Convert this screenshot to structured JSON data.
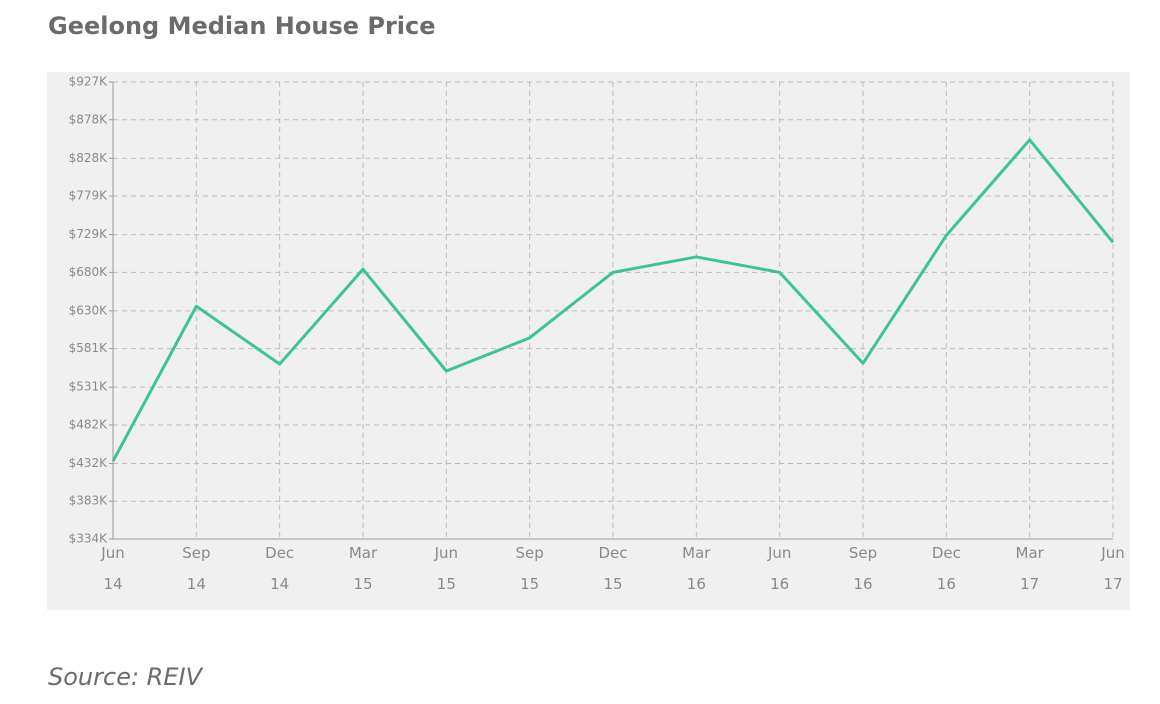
{
  "chart_data": {
    "type": "line",
    "title": "Geelong Median House Price",
    "source": "Source: REIV",
    "categories": [
      "Jun 14",
      "Sep 14",
      "Dec 14",
      "Mar 15",
      "Jun 15",
      "Sep 15",
      "Dec 15",
      "Mar 16",
      "Jun 16",
      "Sep 16",
      "Dec 16",
      "Mar 17",
      "Jun 17"
    ],
    "series": [
      {
        "color": "#3dc495",
        "values": [
          435000,
          636000,
          561000,
          684000,
          552000,
          595000,
          680000,
          700000,
          680000,
          562000,
          728000,
          852000,
          719000
        ]
      }
    ],
    "ylim": [
      334000,
      927000
    ],
    "yticks": [
      {
        "value": 334000,
        "label": "$334K"
      },
      {
        "value": 383000,
        "label": "$383K"
      },
      {
        "value": 432000,
        "label": "$432K"
      },
      {
        "value": 482000,
        "label": "$482K"
      },
      {
        "value": 531000,
        "label": "$531K"
      },
      {
        "value": 581000,
        "label": "$581K"
      },
      {
        "value": 630000,
        "label": "$630K"
      },
      {
        "value": 680000,
        "label": "$680K"
      },
      {
        "value": 729000,
        "label": "$729K"
      },
      {
        "value": 779000,
        "label": "$779K"
      },
      {
        "value": 828000,
        "label": "$828K"
      },
      {
        "value": 878000,
        "label": "$878K"
      },
      {
        "value": 927000,
        "label": "$927K"
      }
    ],
    "grid": true
  }
}
